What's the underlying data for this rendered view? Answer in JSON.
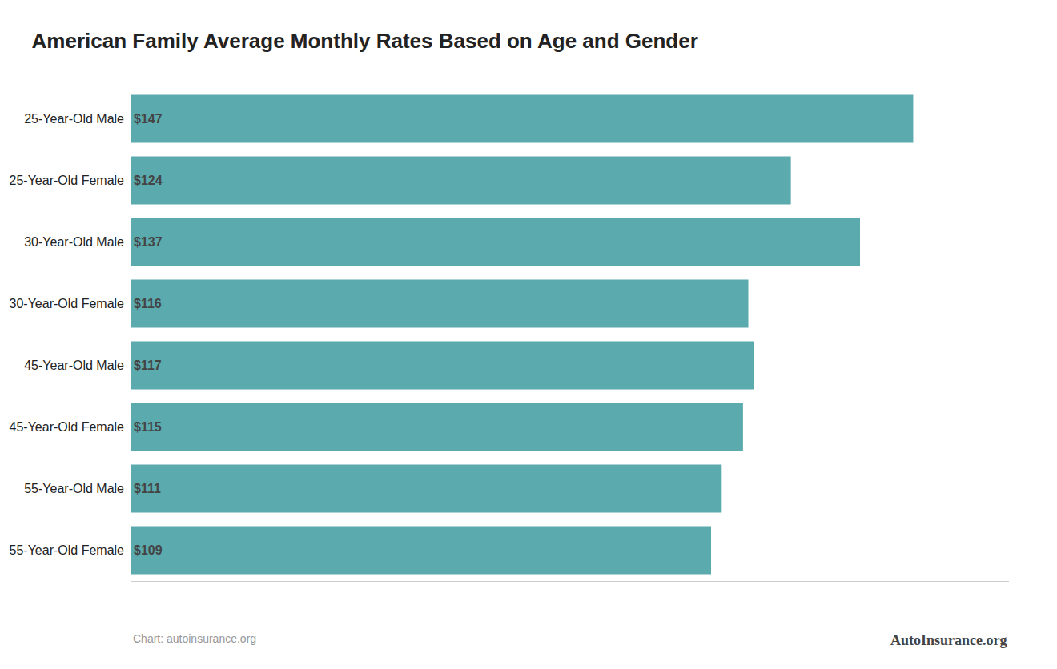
{
  "chart_data": {
    "type": "bar",
    "orientation": "horizontal",
    "title": "American Family Average Monthly Rates Based on Age and Gender",
    "categories": [
      "25-Year-Old Male",
      "25-Year-Old Female",
      "30-Year-Old Male",
      "30-Year-Old Female",
      "45-Year-Old Male",
      "45-Year-Old Female",
      "55-Year-Old Male",
      "55-Year-Old Female"
    ],
    "values": [
      147,
      124,
      137,
      116,
      117,
      115,
      111,
      109
    ],
    "value_labels": [
      "$147",
      "$124",
      "$137",
      "$116",
      "$117",
      "$115",
      "$111",
      "$109"
    ],
    "data_labels": true,
    "color": "#5BAAAD",
    "xlim": [
      0,
      165
    ],
    "grid": false,
    "tick_labels": "y",
    "annotations": [
      "Chart: autoinsurance.org",
      "AutoInsurance.org"
    ]
  }
}
